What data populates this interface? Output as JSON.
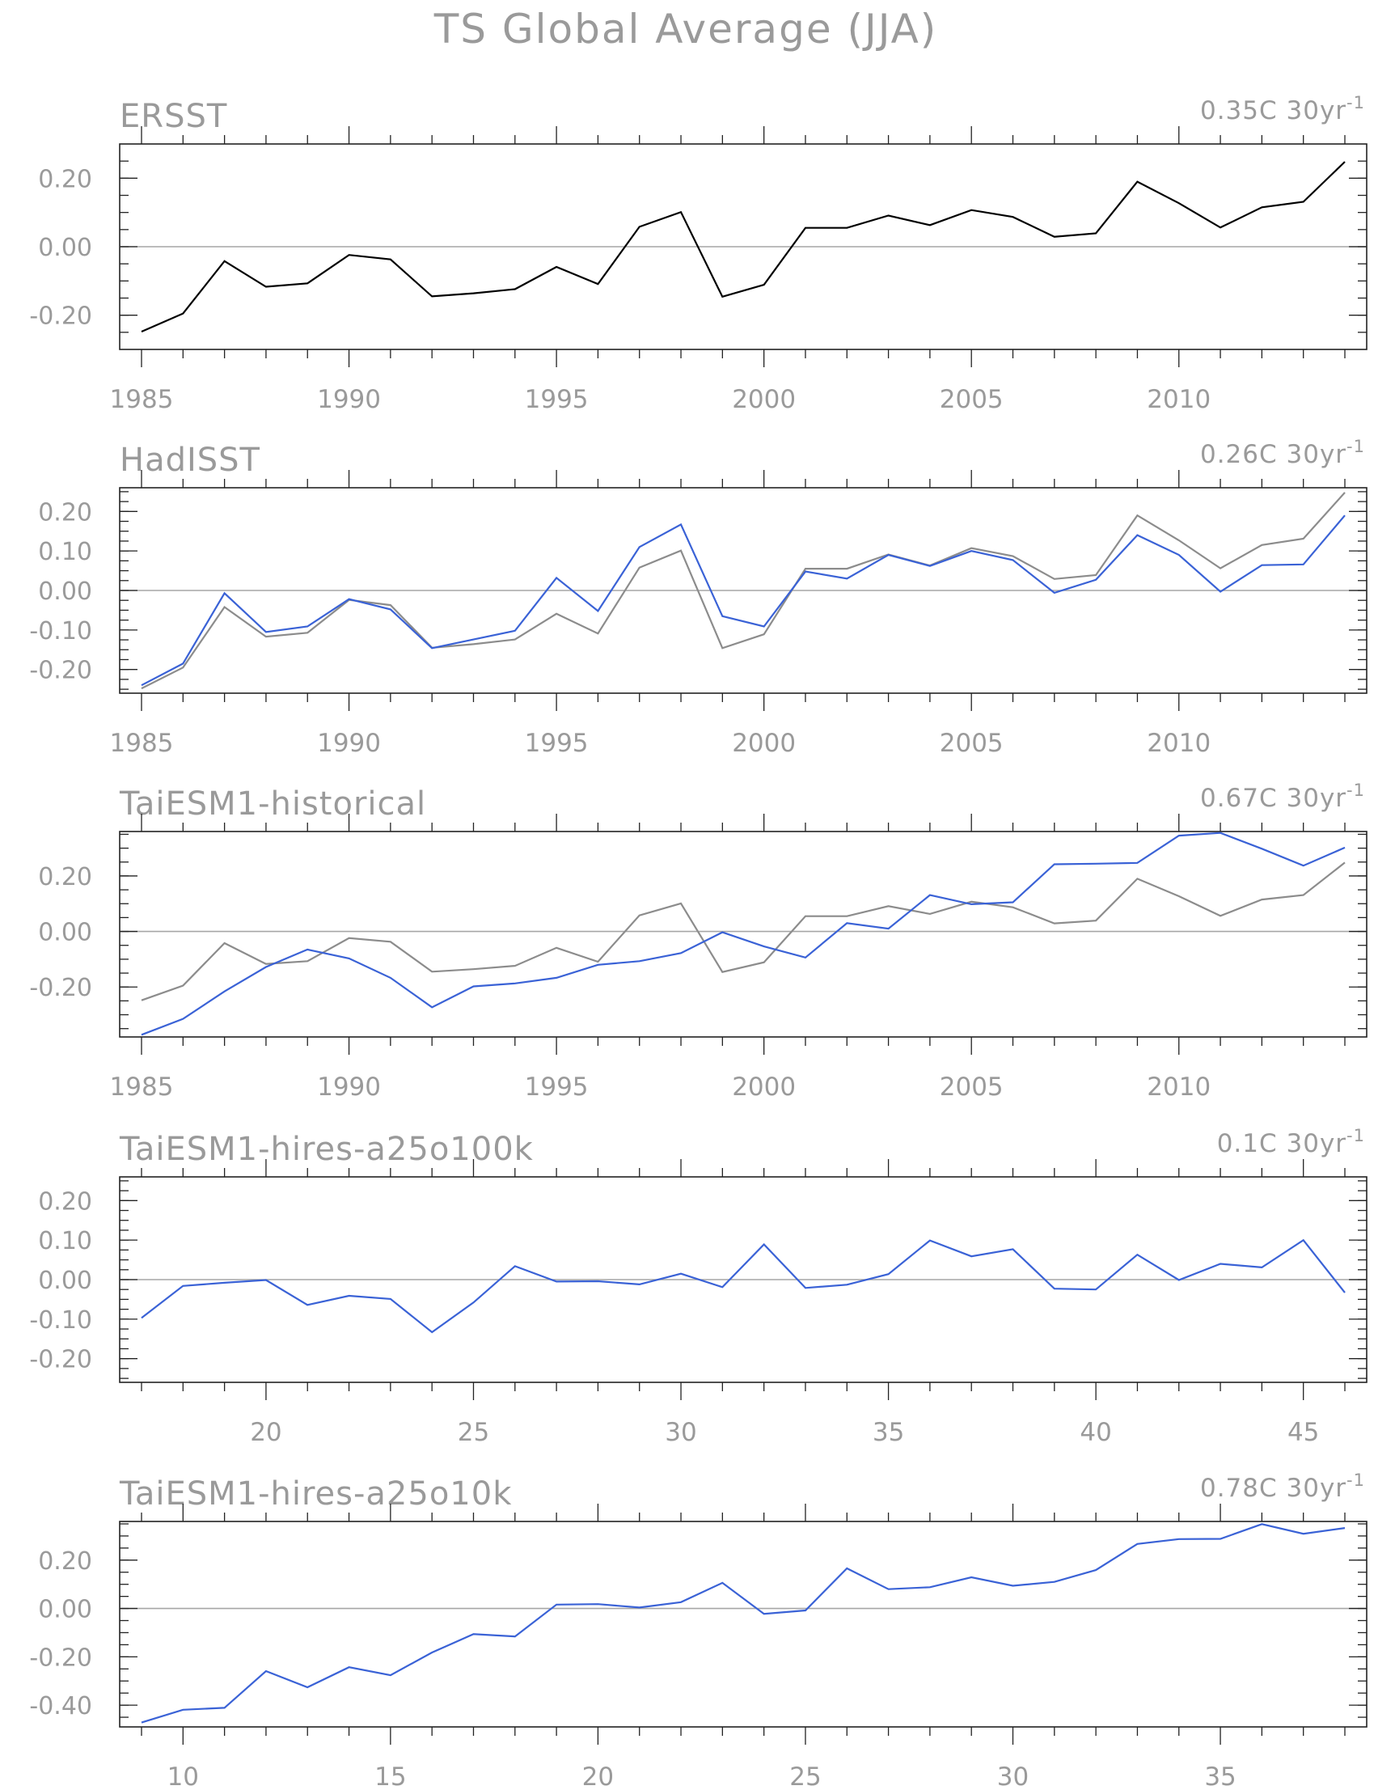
{
  "title": "TS Global Average (JJA)",
  "colors": {
    "reference": "#000000",
    "reference_overlay": "#8c8c8c",
    "model": "#3a62d6",
    "text": "#9a9a9a"
  },
  "chart_data": [
    {
      "type": "line",
      "title": "ERSST",
      "trend_value": "0.35C 30yr",
      "trend_exponent": "-1",
      "x": [
        1985,
        1986,
        1987,
        1988,
        1989,
        1990,
        1991,
        1992,
        1993,
        1994,
        1995,
        1996,
        1997,
        1998,
        1999,
        2000,
        2001,
        2002,
        2003,
        2004,
        2005,
        2006,
        2007,
        2008,
        2009,
        2010,
        2011,
        2012,
        2013,
        2014
      ],
      "xticks": [
        "1985",
        "1990",
        "1995",
        "2000",
        "2005",
        "2010"
      ],
      "yticks": [
        "0.20",
        "0.00",
        "-0.20"
      ],
      "ylim": [
        -0.3,
        0.3
      ],
      "series": [
        {
          "values": [
            -0.248,
            -0.195,
            -0.042,
            -0.117,
            -0.107,
            -0.024,
            -0.037,
            -0.145,
            -0.136,
            -0.124,
            -0.059,
            -0.109,
            0.058,
            0.101,
            -0.146,
            -0.111,
            0.055,
            0.055,
            0.091,
            0.063,
            0.107,
            0.087,
            0.029,
            0.039,
            0.19,
            0.127,
            0.056,
            0.115,
            0.131,
            0.248
          ]
        }
      ]
    },
    {
      "type": "line",
      "title": "HadISST",
      "trend_value": "0.26C 30yr",
      "trend_exponent": "-1",
      "x": [
        1985,
        1986,
        1987,
        1988,
        1989,
        1990,
        1991,
        1992,
        1993,
        1994,
        1995,
        1996,
        1997,
        1998,
        1999,
        2000,
        2001,
        2002,
        2003,
        2004,
        2005,
        2006,
        2007,
        2008,
        2009,
        2010,
        2011,
        2012,
        2013,
        2014
      ],
      "xticks": [
        "1985",
        "1990",
        "1995",
        "2000",
        "2005",
        "2010"
      ],
      "yticks": [
        "0.20",
        "0.10",
        "0.00",
        "-0.10",
        "-0.20"
      ],
      "ylim": [
        -0.26,
        0.26
      ],
      "series": [
        {
          "values": [
            -0.248,
            -0.195,
            -0.042,
            -0.117,
            -0.107,
            -0.024,
            -0.037,
            -0.145,
            -0.136,
            -0.124,
            -0.059,
            -0.109,
            0.058,
            0.101,
            -0.146,
            -0.111,
            0.055,
            0.055,
            0.091,
            0.063,
            0.107,
            0.087,
            0.029,
            0.039,
            0.19,
            0.127,
            0.056,
            0.115,
            0.131,
            0.248
          ]
        },
        {
          "values": [
            -0.24,
            -0.185,
            -0.007,
            -0.105,
            -0.091,
            -0.022,
            -0.048,
            -0.146,
            -0.124,
            -0.102,
            0.032,
            -0.052,
            0.11,
            0.167,
            -0.065,
            -0.091,
            0.048,
            0.03,
            0.09,
            0.062,
            0.1,
            0.077,
            -0.006,
            0.027,
            0.14,
            0.09,
            -0.003,
            0.064,
            0.066,
            0.19
          ]
        }
      ]
    },
    {
      "type": "line",
      "title": "TaiESM1-historical",
      "trend_value": "0.67C 30yr",
      "trend_exponent": "-1",
      "x": [
        1985,
        1986,
        1987,
        1988,
        1989,
        1990,
        1991,
        1992,
        1993,
        1994,
        1995,
        1996,
        1997,
        1998,
        1999,
        2000,
        2001,
        2002,
        2003,
        2004,
        2005,
        2006,
        2007,
        2008,
        2009,
        2010,
        2011,
        2012,
        2013,
        2014
      ],
      "xticks": [
        "1985",
        "1990",
        "1995",
        "2000",
        "2005",
        "2010"
      ],
      "yticks": [
        "0.20",
        "0.00",
        "-0.20"
      ],
      "ylim": [
        -0.38,
        0.36
      ],
      "series": [
        {
          "values": [
            -0.248,
            -0.195,
            -0.042,
            -0.117,
            -0.107,
            -0.024,
            -0.037,
            -0.145,
            -0.136,
            -0.124,
            -0.059,
            -0.109,
            0.058,
            0.101,
            -0.146,
            -0.111,
            0.055,
            0.055,
            0.091,
            0.063,
            0.107,
            0.087,
            0.029,
            0.039,
            0.19,
            0.127,
            0.056,
            0.115,
            0.131,
            0.248
          ]
        },
        {
          "values": [
            -0.372,
            -0.315,
            -0.216,
            -0.128,
            -0.065,
            -0.097,
            -0.167,
            -0.273,
            -0.198,
            -0.187,
            -0.167,
            -0.12,
            -0.107,
            -0.078,
            -0.003,
            -0.054,
            -0.094,
            0.03,
            0.01,
            0.131,
            0.098,
            0.105,
            0.242,
            0.244,
            0.247,
            0.345,
            0.355,
            0.298,
            0.237,
            0.302
          ]
        }
      ]
    },
    {
      "type": "line",
      "title": "TaiESM1-hires-a25o100k",
      "trend_value": "0.1C 30yr",
      "trend_exponent": "-1",
      "x": [
        17,
        18,
        19,
        20,
        21,
        22,
        23,
        24,
        25,
        26,
        27,
        28,
        29,
        30,
        31,
        32,
        33,
        34,
        35,
        36,
        37,
        38,
        39,
        40,
        41,
        42,
        43,
        44,
        45,
        46
      ],
      "xticks": [
        "20",
        "25",
        "30",
        "35",
        "40",
        "45"
      ],
      "yticks": [
        "0.20",
        "0.10",
        "0.00",
        "-0.10",
        "-0.20"
      ],
      "ylim": [
        -0.26,
        0.26
      ],
      "series": [
        {
          "values": [
            -0.097,
            -0.016,
            -0.008,
            -0.001,
            -0.064,
            -0.041,
            -0.049,
            -0.133,
            -0.058,
            0.034,
            -0.005,
            -0.004,
            -0.012,
            0.015,
            -0.019,
            0.089,
            -0.021,
            -0.013,
            0.014,
            0.099,
            0.059,
            0.077,
            -0.023,
            -0.025,
            0.063,
            -0.001,
            0.04,
            0.031,
            0.1,
            -0.033
          ]
        }
      ]
    },
    {
      "type": "line",
      "title": "TaiESM1-hires-a25o10k",
      "trend_value": "0.78C 30yr",
      "trend_exponent": "-1",
      "x": [
        9,
        10,
        11,
        12,
        13,
        14,
        15,
        16,
        17,
        18,
        19,
        20,
        21,
        22,
        23,
        24,
        25,
        26,
        27,
        28,
        29,
        30,
        31,
        32,
        33,
        34,
        35,
        36,
        37,
        38
      ],
      "xticks": [
        "10",
        "15",
        "20",
        "25",
        "30",
        "35"
      ],
      "yticks": [
        "0.20",
        "0.00",
        "-0.20",
        "-0.40"
      ],
      "ylim": [
        -0.49,
        0.36
      ],
      "series": [
        {
          "values": [
            -0.472,
            -0.419,
            -0.411,
            -0.259,
            -0.326,
            -0.243,
            -0.276,
            -0.182,
            -0.106,
            -0.116,
            0.016,
            0.018,
            0.004,
            0.026,
            0.106,
            -0.022,
            -0.008,
            0.166,
            0.08,
            0.088,
            0.129,
            0.094,
            0.11,
            0.159,
            0.267,
            0.287,
            0.288,
            0.349,
            0.309,
            0.333
          ]
        }
      ]
    }
  ]
}
